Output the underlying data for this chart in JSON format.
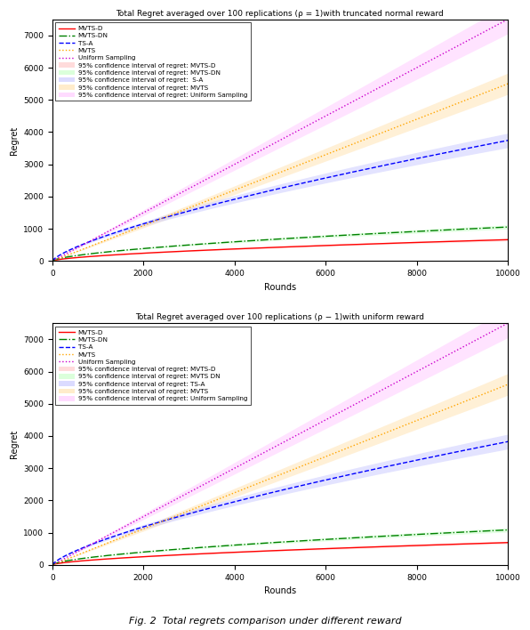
{
  "title1": "Total Regret averaged over 100 replications (ρ = 1)with truncated normal reward",
  "title2": "Total Regret averaged over 100 replications (ρ − 1)with uniform reward",
  "xlabel": "Rounds",
  "ylabel": "Regret",
  "x_max": 10000,
  "line_params_top": {
    "MVTS-D": [
      2.2,
      0.62
    ],
    "MVTS-DN": [
      3.5,
      0.62
    ],
    "TS-A": [
      4.5,
      0.73
    ],
    "MVTS": [
      0.55,
      1.0
    ],
    "Uniform Sampling": [
      0.75,
      1.0
    ]
  },
  "line_params_bot": {
    "MVTS-D": [
      2.3,
      0.62
    ],
    "MVTS-DN": [
      3.6,
      0.62
    ],
    "TS-A": [
      4.6,
      0.73
    ],
    "MVTS": [
      0.56,
      1.0
    ],
    "Uniform Sampling": [
      0.75,
      1.0
    ]
  },
  "ci_colors": {
    "MVTS-D": "#ffcccc",
    "MVTS-DN": "#ccffcc",
    "TS-A": "#ccccff",
    "MVTS": "#ffe4b5",
    "Uniform Sampling": "#ffccff"
  },
  "ci_fracs": {
    "MVTS-D": 0.06,
    "MVTS-DN": 0.06,
    "TS-A": 0.06,
    "MVTS": 0.06,
    "Uniform Sampling": 0.06
  },
  "legend_labels_lines": [
    "MVTS-D",
    "MVTS-DN",
    "TS-A",
    "MVTS",
    "Uniform Sampling"
  ],
  "legend_labels_ci_top": [
    "95% confidence interval of regret: MVTS-D",
    "95% confidence interval of regret: MVTS-DN",
    "95% confidence interval of regret:  S-A",
    "95% confidence interval of regret: MVTS",
    "95% confidence interval of regret: Uniform Sampling"
  ],
  "legend_labels_ci_bot": [
    "95% confidence interval of regret: MVTS-D",
    "95% confidence interval of regret: MVTS DN",
    "95% confidence interval of regret: TS-A",
    "95% confidence interval of regret: MVTS",
    "95% confidence interval of regret: Uniform Sampling"
  ],
  "line_styles": {
    "MVTS-D": "-",
    "MVTS-DN": "-.",
    "TS-A": "--",
    "MVTS": ":",
    "Uniform Sampling": ":"
  },
  "line_colors": {
    "MVTS-D": "#ff0000",
    "MVTS-DN": "#008000",
    "TS-A": "#0000ff",
    "MVTS": "#ffa500",
    "Uniform Sampling": "#cc00cc"
  },
  "xticks": [
    0,
    2000,
    4000,
    6000,
    8000,
    10000
  ],
  "yticks": [
    0,
    1000,
    2000,
    3000,
    4000,
    5000,
    6000,
    7000
  ],
  "ylim": [
    0,
    7500
  ],
  "fig_caption": "Fig. 2  Total regrets comparison under different reward"
}
